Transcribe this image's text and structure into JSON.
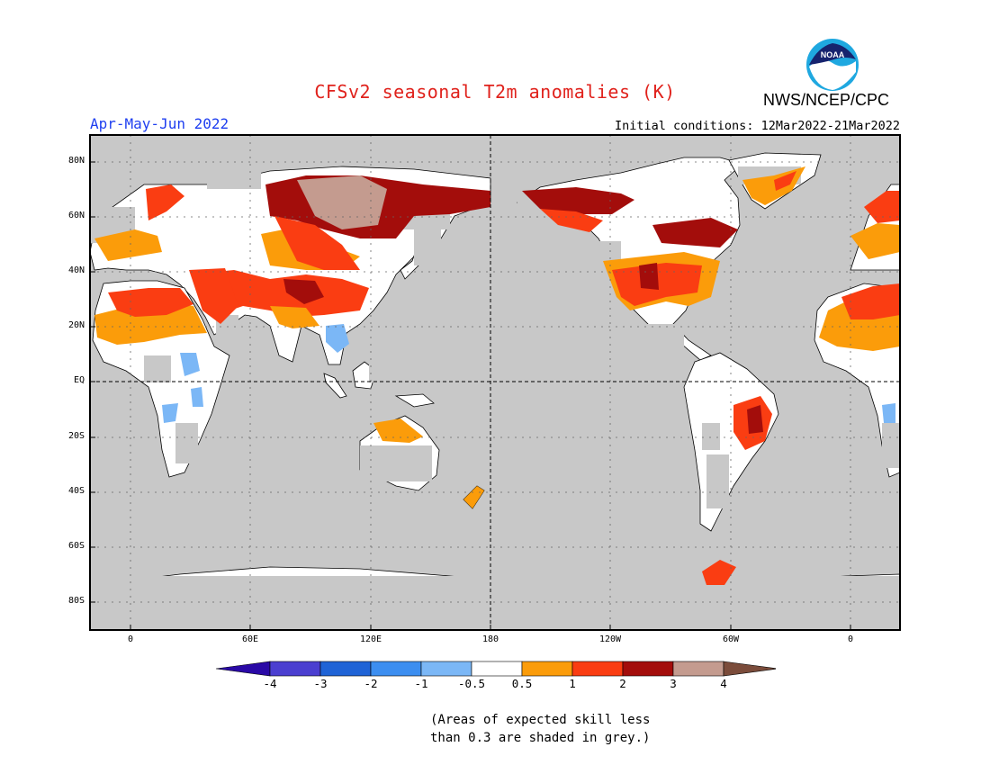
{
  "header": {
    "title": "CFSv2 seasonal T2m anomalies (K)",
    "organization": "NWS/NCEP/CPC",
    "logo_text": "NOAA",
    "season": "Apr-May-Jun 2022",
    "initial_conditions": "Initial conditions: 12Mar2022-21Mar2022"
  },
  "map": {
    "ocean_color": "#c8c8c8",
    "land_color": "#ffffff",
    "lat_labels": [
      "80N",
      "60N",
      "40N",
      "20N",
      "EQ",
      "20S",
      "40S",
      "60S",
      "80S"
    ],
    "lon_labels": [
      "0",
      "60E",
      "120E",
      "180",
      "120W",
      "60W",
      "0"
    ]
  },
  "colorbar": {
    "labels": [
      "-4",
      "-3",
      "-2",
      "-1",
      "-0.5",
      "0.5",
      "1",
      "2",
      "3",
      "4"
    ],
    "colors": [
      "#2a09a6",
      "#4b3fd0",
      "#1f63d6",
      "#3c8ef0",
      "#7bb7f6",
      "#ffffff",
      "#fb9c0a",
      "#fa3d12",
      "#a30d0b",
      "#c49b8f",
      "#7b4c3b"
    ]
  },
  "footnote": {
    "line1": "(Areas of expected skill less",
    "line2": "than 0.3 are shaded in grey.)"
  }
}
